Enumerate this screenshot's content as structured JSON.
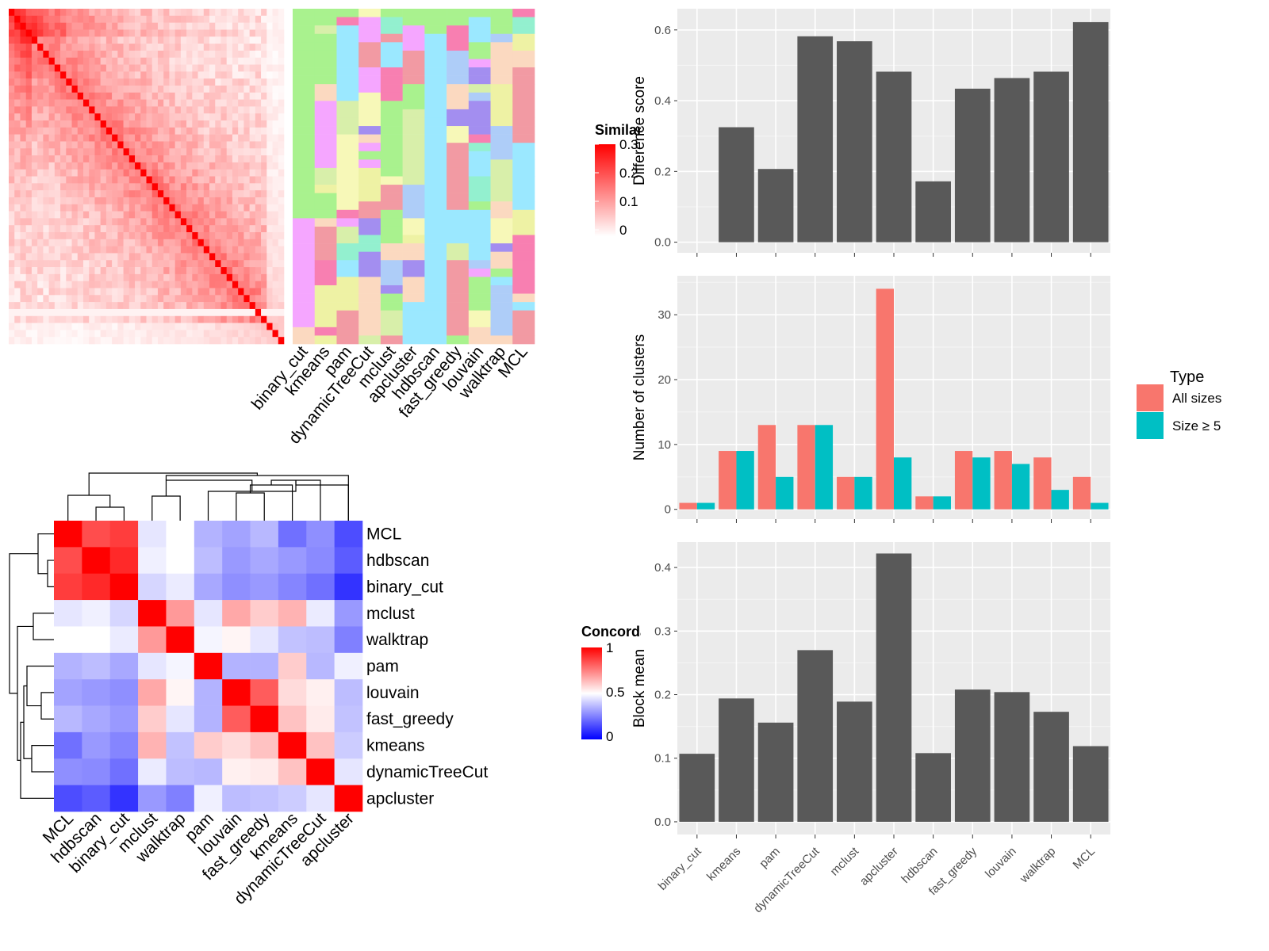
{
  "methods": [
    "binary_cut",
    "kmeans",
    "pam",
    "dynamicTreeCut",
    "mclust",
    "apcluster",
    "hdbscan",
    "fast_greedy",
    "louvain",
    "walktrap",
    "MCL"
  ],
  "similarity_legend": {
    "title": "Similarity",
    "ticks": [
      "0.3",
      "0.2",
      "0.1",
      "0"
    ],
    "colors": [
      "#ff0000",
      "#ffffff"
    ]
  },
  "concordance_legend": {
    "title": "Concordance",
    "ticks": [
      "1",
      "0.5",
      "0"
    ],
    "colors": [
      "#ff0000",
      "#ffffff",
      "#0000ff"
    ]
  },
  "cluster_palette": [
    "#a9f28e",
    "#f87fb1",
    "#aecdf8",
    "#f29aa3",
    "#93f0cf",
    "#eef2a4",
    "#f5a6ff",
    "#d8efaa",
    "#a38ef0",
    "#f7f8b8",
    "#9be8ff",
    "#fbd9c0"
  ],
  "concordance_matrix": {
    "order": [
      "MCL",
      "hdbscan",
      "binary_cut",
      "mclust",
      "walktrap",
      "pam",
      "louvain",
      "fast_greedy",
      "kmeans",
      "dynamicTreeCut",
      "apcluster"
    ],
    "values": [
      [
        1.0,
        0.85,
        0.88,
        0.45,
        0.5,
        0.35,
        0.32,
        0.36,
        0.22,
        0.28,
        0.15
      ],
      [
        0.85,
        1.0,
        0.92,
        0.47,
        0.5,
        0.37,
        0.3,
        0.33,
        0.3,
        0.27,
        0.18
      ],
      [
        0.88,
        0.92,
        1.0,
        0.42,
        0.46,
        0.33,
        0.28,
        0.3,
        0.26,
        0.22,
        0.1
      ],
      [
        0.45,
        0.47,
        0.42,
        1.0,
        0.7,
        0.45,
        0.67,
        0.6,
        0.65,
        0.46,
        0.3
      ],
      [
        0.5,
        0.5,
        0.46,
        0.7,
        1.0,
        0.48,
        0.52,
        0.45,
        0.38,
        0.37,
        0.25
      ],
      [
        0.35,
        0.37,
        0.33,
        0.45,
        0.48,
        1.0,
        0.35,
        0.35,
        0.6,
        0.36,
        0.47
      ],
      [
        0.32,
        0.3,
        0.28,
        0.67,
        0.52,
        0.35,
        1.0,
        0.82,
        0.57,
        0.53,
        0.37
      ],
      [
        0.36,
        0.33,
        0.3,
        0.6,
        0.45,
        0.35,
        0.82,
        1.0,
        0.62,
        0.54,
        0.38
      ],
      [
        0.22,
        0.3,
        0.26,
        0.65,
        0.38,
        0.6,
        0.57,
        0.62,
        1.0,
        0.62,
        0.4
      ],
      [
        0.28,
        0.27,
        0.22,
        0.46,
        0.37,
        0.36,
        0.53,
        0.54,
        0.62,
        1.0,
        0.45
      ],
      [
        0.15,
        0.18,
        0.1,
        0.3,
        0.25,
        0.47,
        0.37,
        0.38,
        0.4,
        0.45,
        1.0
      ]
    ]
  },
  "chart_data": [
    {
      "type": "bar",
      "name": "difference_score",
      "categories": [
        "binary_cut",
        "kmeans",
        "pam",
        "dynamicTreeCut",
        "mclust",
        "apcluster",
        "hdbscan",
        "fast_greedy",
        "louvain",
        "walktrap",
        "MCL"
      ],
      "values": [
        0.0,
        0.325,
        0.207,
        0.582,
        0.568,
        0.482,
        0.172,
        0.434,
        0.464,
        0.482,
        0.622
      ],
      "ylabel": "Difference score",
      "ylim": [
        -0.03,
        0.66
      ],
      "yticks": [
        "0.0",
        "0.2",
        "0.4",
        "0.6"
      ]
    },
    {
      "type": "bar",
      "name": "number_of_clusters",
      "categories": [
        "binary_cut",
        "kmeans",
        "pam",
        "dynamicTreeCut",
        "mclust",
        "apcluster",
        "hdbscan",
        "fast_greedy",
        "louvain",
        "walktrap",
        "MCL"
      ],
      "ylabel": "Number of clusters",
      "ylim": [
        -1.5,
        36
      ],
      "yticks": [
        "0",
        "10",
        "20",
        "30"
      ],
      "legend_title": "Type",
      "series": [
        {
          "name": "All sizes",
          "color": "#f8766d",
          "values": [
            1,
            9,
            13,
            13,
            5,
            34,
            2,
            9,
            9,
            8,
            5
          ]
        },
        {
          "name": "Size ≥ 5",
          "color": "#00bfc4",
          "values": [
            1,
            9,
            5,
            13,
            5,
            8,
            2,
            8,
            7,
            3,
            1
          ]
        }
      ]
    },
    {
      "type": "bar",
      "name": "block_mean",
      "categories": [
        "binary_cut",
        "kmeans",
        "pam",
        "dynamicTreeCut",
        "mclust",
        "apcluster",
        "hdbscan",
        "fast_greedy",
        "louvain",
        "walktrap",
        "MCL"
      ],
      "values": [
        0.107,
        0.194,
        0.156,
        0.27,
        0.189,
        0.422,
        0.108,
        0.208,
        0.204,
        0.173,
        0.119
      ],
      "ylabel": "Block mean",
      "ylim": [
        -0.02,
        0.44
      ],
      "yticks": [
        "0.0",
        "0.1",
        "0.2",
        "0.3",
        "0.4"
      ]
    }
  ]
}
